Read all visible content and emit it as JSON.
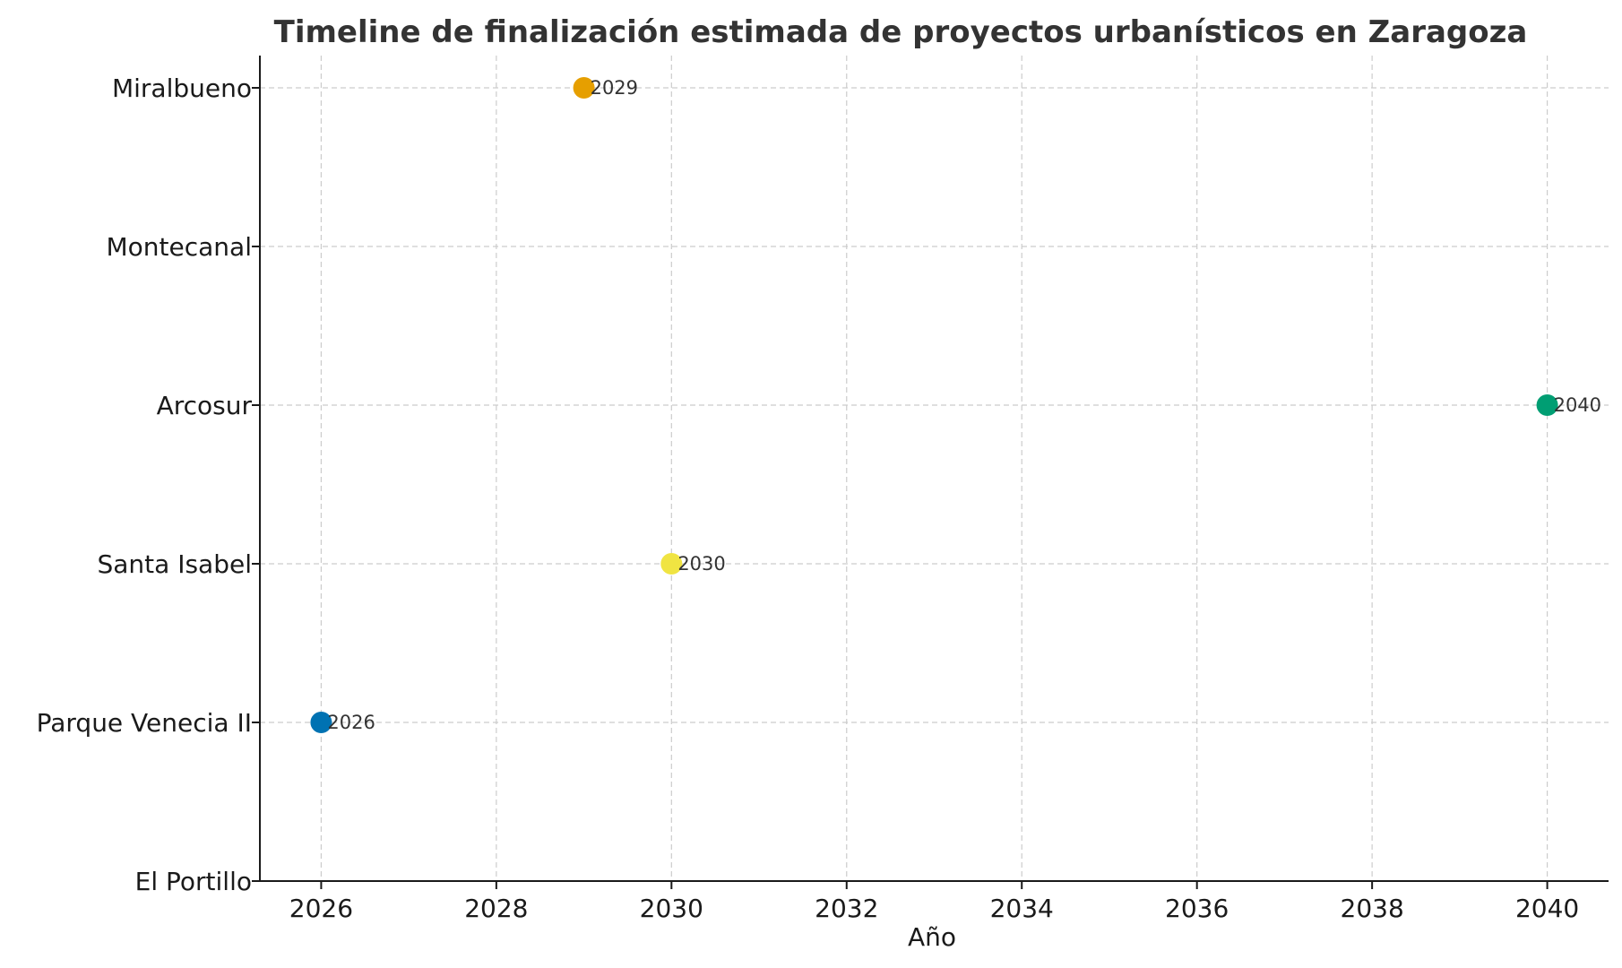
{
  "chart_data": {
    "type": "scatter",
    "title": "Timeline de finalización estimada de proyectos urbanísticos en Zaragoza",
    "xlabel": "Año",
    "ylabel": "",
    "xlim": [
      2025.3,
      2040.7
    ],
    "x_ticks": [
      2026,
      2028,
      2030,
      2032,
      2034,
      2036,
      2038,
      2040
    ],
    "categories": [
      "El Portillo",
      "Parque Venecia II",
      "Santa Isabel",
      "Arcosur",
      "Montecanal",
      "Miralbueno"
    ],
    "grid": true,
    "points": [
      {
        "category": "Miralbueno",
        "x": 2029,
        "label": "2029",
        "color": "#E69F00"
      },
      {
        "category": "Arcosur",
        "x": 2040,
        "label": "2040",
        "color": "#009E73"
      },
      {
        "category": "Santa Isabel",
        "x": 2030,
        "label": "2030",
        "color": "#F0E442"
      },
      {
        "category": "Parque Venecia II",
        "x": 2026,
        "label": "2026",
        "color": "#0072B2"
      }
    ]
  }
}
